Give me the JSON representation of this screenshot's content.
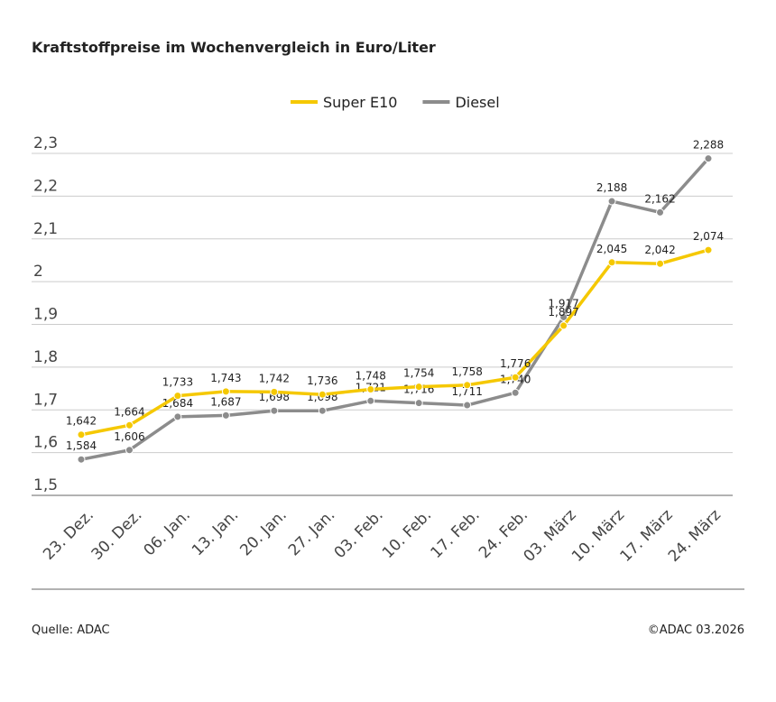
{
  "chart_data": {
    "type": "line",
    "title": "Kraftstoffpreise im Wochenvergleich in Euro/Liter",
    "categories": [
      "23. Dez.",
      "30. Dez.",
      "06. Jan.",
      "13. Jan.",
      "20. Jan.",
      "27. Jan.",
      "03. Feb.",
      "10. Feb.",
      "17. Feb.",
      "24. Feb.",
      "03. März",
      "10. März",
      "17. März",
      "24. März"
    ],
    "series": [
      {
        "name": "Super E10",
        "color": "#f5c800",
        "values": [
          1.642,
          1.664,
          1.733,
          1.743,
          1.742,
          1.736,
          1.748,
          1.754,
          1.758,
          1.776,
          1.897,
          2.045,
          2.042,
          2.074
        ],
        "value_labels": [
          "1,642",
          "1,664",
          "1,733",
          "1,743",
          "1,742",
          "1,736",
          "1,748",
          "1,754",
          "1,758",
          "1,776",
          "1,897",
          "2,045",
          "2,042",
          "2,074"
        ]
      },
      {
        "name": "Diesel",
        "color": "#8c8c8c",
        "values": [
          1.584,
          1.606,
          1.684,
          1.687,
          1.698,
          1.698,
          1.721,
          1.716,
          1.711,
          1.74,
          1.917,
          2.188,
          2.162,
          2.288
        ],
        "value_labels": [
          "1,584",
          "1,606",
          "1,684",
          "1,687",
          "1,698",
          "1,698",
          "1,721",
          "1,716",
          "1,711",
          "1,740",
          "1,917",
          "2,188",
          "2,162",
          "2,288"
        ]
      }
    ],
    "ylim": [
      1.5,
      2.3
    ],
    "yticks": [
      {
        "value": 1.5,
        "label": "1,5"
      },
      {
        "value": 1.6,
        "label": "1,6"
      },
      {
        "value": 1.7,
        "label": "1,7"
      },
      {
        "value": 1.8,
        "label": "1,8"
      },
      {
        "value": 1.9,
        "label": "1,9"
      },
      2,
      {
        "value": 2.1,
        "label": "2,1"
      },
      {
        "value": 2.2,
        "label": "2,2"
      },
      {
        "value": 2.3,
        "label": "2,3"
      }
    ],
    "grid": true,
    "legend": "top",
    "source": "Quelle: ADAC",
    "copyright": "©ADAC 03.2026"
  }
}
